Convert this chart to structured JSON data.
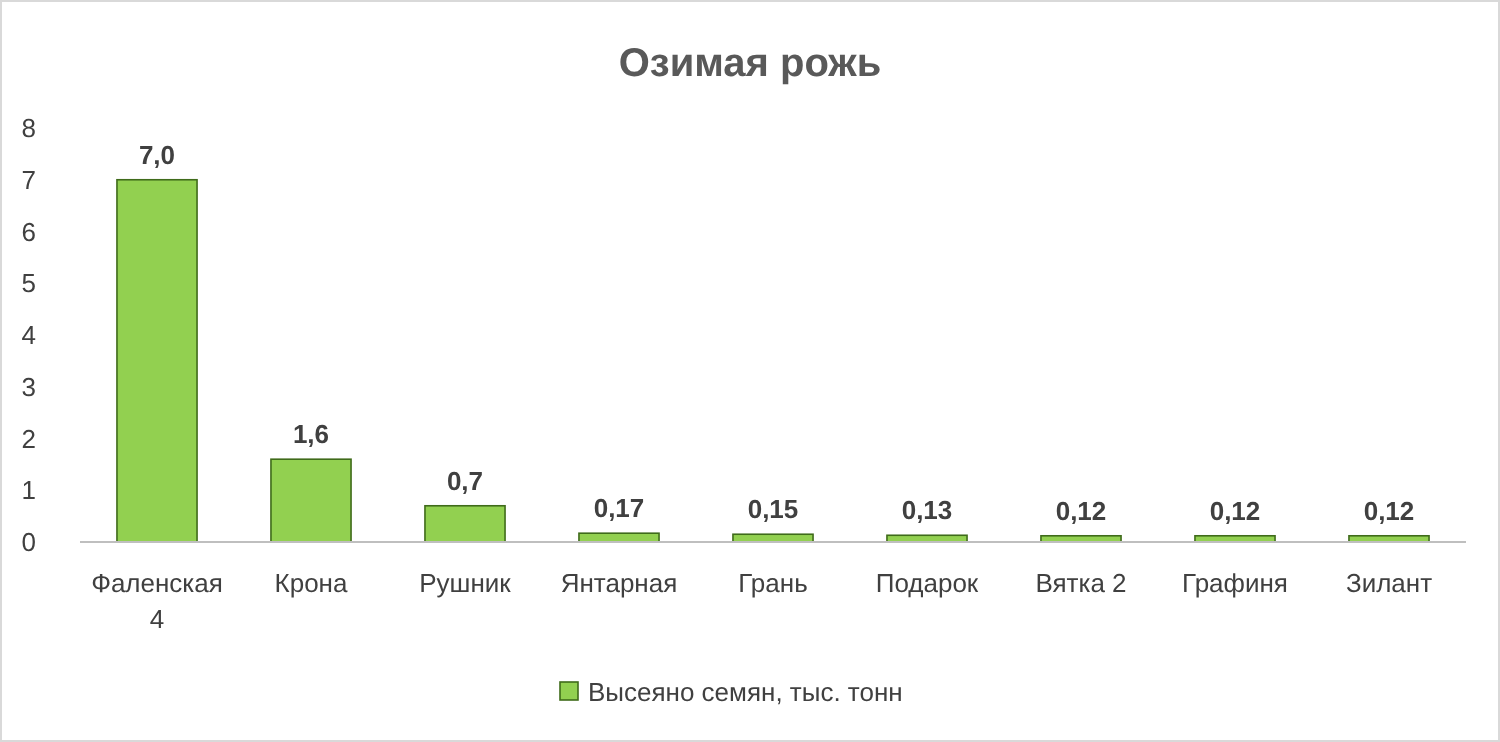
{
  "chart_data": {
    "type": "bar",
    "title": "Озимая рожь",
    "categories": [
      "Фаленская 4",
      "Крона",
      "Рушник",
      "Янтарная",
      "Грань",
      "Подарок",
      "Вятка 2",
      "Графиня",
      "Зилант"
    ],
    "series": [
      {
        "name": "Высеяно семян, тыс. тонн",
        "color": "#92d050",
        "values": [
          7.0,
          1.6,
          0.7,
          0.17,
          0.15,
          0.13,
          0.12,
          0.12,
          0.12
        ],
        "value_labels": [
          "7,0",
          "1,6",
          "0,7",
          "0,17",
          "0,15",
          "0,13",
          "0,12",
          "0,12",
          "0,12"
        ]
      }
    ],
    "ylim": [
      0,
      8
    ],
    "yticks": [
      0,
      1,
      2,
      3,
      4,
      5,
      6,
      7,
      8
    ],
    "grid": false,
    "legend": "bottom"
  }
}
